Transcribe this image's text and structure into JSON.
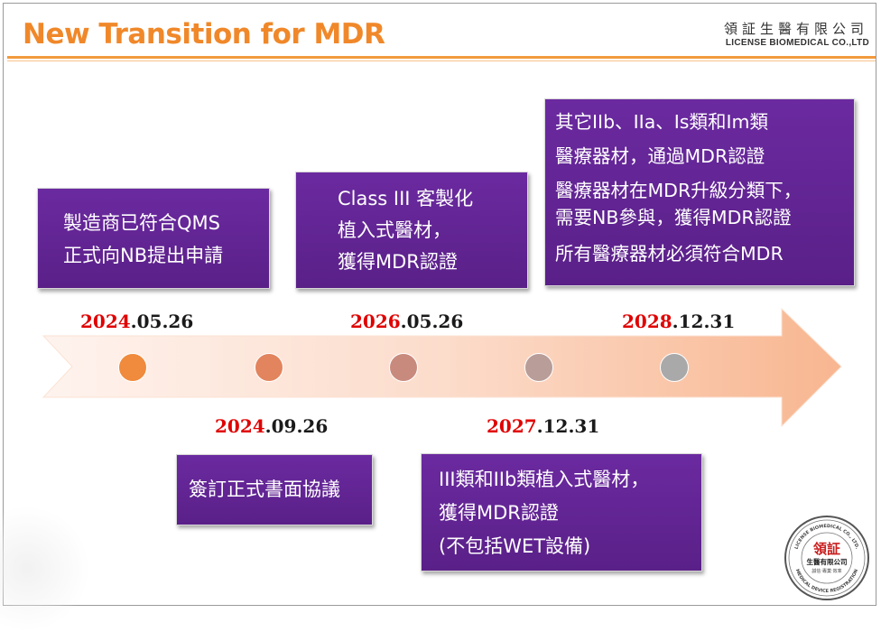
{
  "header": {
    "title": "New Transition for MDR",
    "company_cn": "領証生醫有限公司",
    "company_en": "LICENSE BIOMEDICAL CO.,LTD"
  },
  "colors": {
    "title": "#f0882a",
    "box": "#5f2390",
    "date_year": "#e00000",
    "arrow_left": "#fde7da",
    "arrow_right": "#f8b48c"
  },
  "timeline": {
    "dots": [
      "#f08a3c",
      "#e2845e",
      "#c98a7e",
      "#b89d98",
      "#a9a9a9"
    ],
    "dates": [
      {
        "year": "2024",
        "rest": ".05.26"
      },
      {
        "year": "2024",
        "rest": ".09.26"
      },
      {
        "year": "2026",
        "rest": ".05.26"
      },
      {
        "year": "2027",
        "rest": ".12.31"
      },
      {
        "year": "2028",
        "rest": ".12.31"
      }
    ],
    "boxes": [
      {
        "lines": [
          "製造商已符合QMS",
          "正式向NB提出申請"
        ]
      },
      {
        "lines": [
          "簽訂正式書面協議"
        ]
      },
      {
        "lines": [
          "Class III 客製化",
          "植入式醫材，",
          "獲得MDR認證"
        ]
      },
      {
        "lines": [
          "III類和IIb類植入式醫材，",
          "獲得MDR認證",
          "(不包括WET設備)"
        ]
      },
      {
        "lines": [
          "其它IIb、IIa、Is類和Im類",
          "醫療器材，通過MDR認證",
          "醫療器材在MDR升級分類下，",
          "需要NB參與，獲得MDR認證",
          "所有醫療器材必須符合MDR"
        ]
      }
    ]
  },
  "seal": {
    "center": "領証",
    "name": "生醫有限公司",
    "motto": "誠信‧專業‧效率",
    "ring_top": "LICENSE BIOMEDICAL CO., LTD.",
    "ring_bottom": "MEDICAL DEVICE REGISTRATION"
  }
}
